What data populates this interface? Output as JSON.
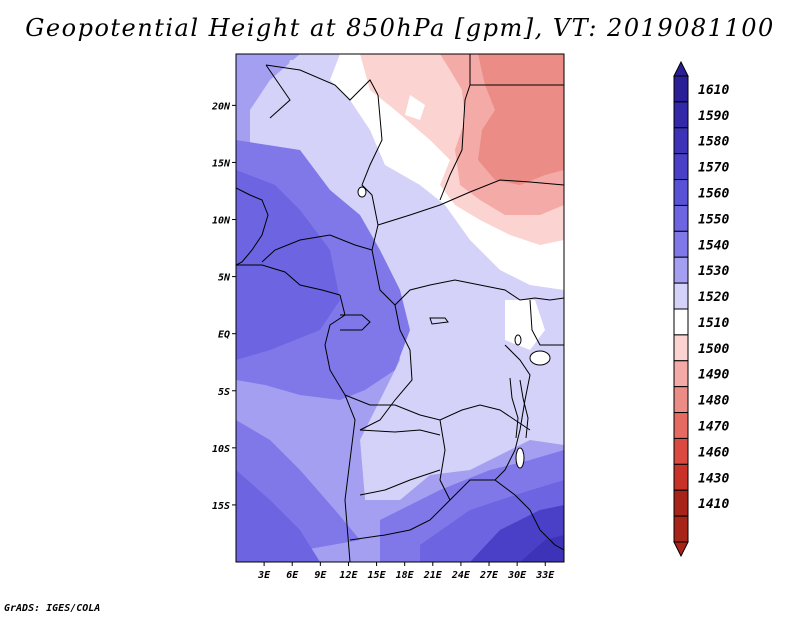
{
  "title": "Geopotential Height at 850hPa [gpm], VT: 2019081100",
  "credit": "GrADS: IGES/COLA",
  "map": {
    "lat_range": [
      -20,
      24.5
    ],
    "lon_range": [
      0,
      35
    ],
    "lat_ticks": [
      {
        "label": "20N",
        "lat": 20
      },
      {
        "label": "15N",
        "lat": 15
      },
      {
        "label": "10N",
        "lat": 10
      },
      {
        "label": "5N",
        "lat": 5
      },
      {
        "label": "EQ",
        "lat": 0
      },
      {
        "label": "5S",
        "lat": -5
      },
      {
        "label": "10S",
        "lat": -10
      },
      {
        "label": "15S",
        "lat": -15
      }
    ],
    "lon_ticks": [
      {
        "label": "3E",
        "lon": 3
      },
      {
        "label": "6E",
        "lon": 6
      },
      {
        "label": "9E",
        "lon": 9
      },
      {
        "label": "12E",
        "lon": 12
      },
      {
        "label": "15E",
        "lon": 15
      },
      {
        "label": "18E",
        "lon": 18
      },
      {
        "label": "21E",
        "lon": 21
      },
      {
        "label": "24E",
        "lon": 24
      },
      {
        "label": "27E",
        "lon": 27
      },
      {
        "label": "30E",
        "lon": 30
      },
      {
        "label": "33E",
        "lon": 33
      }
    ]
  },
  "colorbar": {
    "units": "gpm",
    "levels": [
      {
        "label": "1610",
        "color": "#2a1f96"
      },
      {
        "label": "1590",
        "color": "#3328a8"
      },
      {
        "label": "1580",
        "color": "#3d33b8"
      },
      {
        "label": "1570",
        "color": "#4a40c8"
      },
      {
        "label": "1560",
        "color": "#5a52d6"
      },
      {
        "label": "1550",
        "color": "#6c64e0"
      },
      {
        "label": "1540",
        "color": "#8078e8"
      },
      {
        "label": "1530",
        "color": "#a49ff0"
      },
      {
        "label": "1520",
        "color": "#d4d2f8"
      },
      {
        "label": "1510",
        "color": "#ffffff"
      },
      {
        "label": "1500",
        "color": "#fbd4d2"
      },
      {
        "label": "1490",
        "color": "#f4aaa6"
      },
      {
        "label": "1480",
        "color": "#ec8c86"
      },
      {
        "label": "1470",
        "color": "#e46a62"
      },
      {
        "label": "1460",
        "color": "#da4a40"
      },
      {
        "label": "1430",
        "color": "#c83228"
      },
      {
        "label": "1410",
        "color": "#a82418"
      }
    ]
  }
}
